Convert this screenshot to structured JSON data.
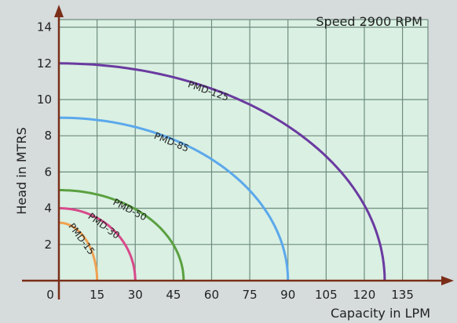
{
  "chart_data": {
    "type": "line",
    "subtitle": "Speed 2900 RPM",
    "xlabel": "Capacity in LPM",
    "ylabel": "Head in MTRS",
    "xlim": [
      0,
      145
    ],
    "ylim": [
      0,
      15
    ],
    "x_ticks": [
      "0",
      "15",
      "30",
      "45",
      "60",
      "75",
      "90",
      "105",
      "120",
      "135"
    ],
    "y_ticks": [
      "2",
      "4",
      "6",
      "8",
      "10",
      "12",
      "14"
    ],
    "grid": true,
    "series": [
      {
        "name": "PMD-15",
        "color": "#f0a050",
        "shutoff_head": 3.2,
        "max_capacity": 15
      },
      {
        "name": "PMD-30",
        "color": "#d84a8a",
        "shutoff_head": 4.0,
        "max_capacity": 30
      },
      {
        "name": "PMD-50",
        "color": "#5aa040",
        "shutoff_head": 5.0,
        "max_capacity": 49
      },
      {
        "name": "PMD-85",
        "color": "#5ba8ec",
        "shutoff_head": 9.0,
        "max_capacity": 90
      },
      {
        "name": "PMD-125",
        "color": "#6a3aa0",
        "shutoff_head": 12.0,
        "max_capacity": 128
      }
    ]
  }
}
